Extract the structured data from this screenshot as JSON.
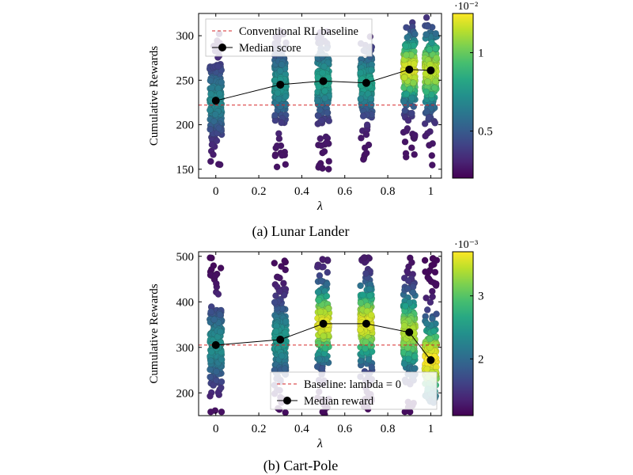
{
  "chart_data": [
    {
      "type": "scatter",
      "subtype": "strip plot with density colouring",
      "caption": "(a) Lunar Lander",
      "xlabel": "λ",
      "ylabel": "Cumulative Rewards",
      "xlim": [
        -0.08,
        1.05
      ],
      "ylim": [
        140,
        325
      ],
      "xticks": [
        0,
        0.2,
        0.4,
        0.6,
        0.8,
        1
      ],
      "xtick_labels": [
        "0",
        "0.2",
        "0.4",
        "0.6",
        "0.8",
        "1"
      ],
      "yticks": [
        150,
        200,
        250,
        300
      ],
      "ytick_labels": [
        "150",
        "200",
        "250",
        "300"
      ],
      "grid": false,
      "legend_position": "top-left",
      "colormap": "viridis",
      "colorbar": {
        "label_exponent": "·10⁻²",
        "range": [
          0.2,
          1.25
        ],
        "ticks": [
          0.5,
          1
        ],
        "tick_labels": [
          "0.5",
          "1"
        ]
      },
      "baseline": {
        "name": "Conventional RL baseline",
        "y": 222,
        "color": "#d62728",
        "style": "dashed"
      },
      "median_series": {
        "name": "Median score",
        "x": [
          0,
          0.3,
          0.5,
          0.7,
          0.9,
          1
        ],
        "y": [
          227,
          245,
          249,
          247,
          262,
          261
        ]
      },
      "strips": [
        {
          "x": 0,
          "ymin": 150,
          "ymax": 305,
          "median": 227,
          "density_peak": 0.7
        },
        {
          "x": 0.3,
          "ymin": 152,
          "ymax": 305,
          "median": 245,
          "density_peak": 0.75
        },
        {
          "x": 0.5,
          "ymin": 150,
          "ymax": 305,
          "median": 249,
          "density_peak": 0.8
        },
        {
          "x": 0.7,
          "ymin": 160,
          "ymax": 305,
          "median": 247,
          "density_peak": 0.8
        },
        {
          "x": 0.9,
          "ymin": 162,
          "ymax": 315,
          "median": 262,
          "density_peak": 1.2
        },
        {
          "x": 1,
          "ymin": 153,
          "ymax": 322,
          "median": 261,
          "density_peak": 1.15
        }
      ]
    },
    {
      "type": "scatter",
      "subtype": "strip plot with density colouring",
      "caption": "(b) Cart-Pole",
      "xlabel": "λ",
      "ylabel": "Cumulative Rewards",
      "xlim": [
        -0.08,
        1.05
      ],
      "ylim": [
        150,
        510
      ],
      "xticks": [
        0,
        0.2,
        0.4,
        0.6,
        0.8,
        1
      ],
      "xtick_labels": [
        "0",
        "0.2",
        "0.4",
        "0.6",
        "0.8",
        "1"
      ],
      "yticks": [
        200,
        300,
        400,
        500
      ],
      "ytick_labels": [
        "200",
        "300",
        "400",
        "500"
      ],
      "grid": false,
      "legend_position": "bottom-right",
      "colormap": "viridis",
      "colorbar": {
        "label_exponent": "·10⁻³",
        "range": [
          1.1,
          3.7
        ],
        "ticks": [
          2,
          3
        ],
        "tick_labels": [
          "2",
          "3"
        ]
      },
      "baseline": {
        "name": "Baseline: lambda = 0",
        "y": 305,
        "color": "#d62728",
        "style": "dashed"
      },
      "median_series": {
        "name": "Median reward",
        "x": [
          0,
          0.3,
          0.5,
          0.7,
          0.9,
          1
        ],
        "y": [
          305,
          317,
          352,
          352,
          333,
          272
        ]
      },
      "strips": [
        {
          "x": 0,
          "ymin": 150,
          "ymax": 500,
          "median": 305,
          "density_peak": 2.4
        },
        {
          "x": 0.3,
          "ymin": 150,
          "ymax": 500,
          "median": 317,
          "density_peak": 2.5
        },
        {
          "x": 0.5,
          "ymin": 150,
          "ymax": 500,
          "median": 352,
          "density_peak": 3.6
        },
        {
          "x": 0.7,
          "ymin": 150,
          "ymax": 500,
          "median": 352,
          "density_peak": 3.6
        },
        {
          "x": 0.9,
          "ymin": 150,
          "ymax": 500,
          "median": 333,
          "density_peak": 3.4
        },
        {
          "x": 1,
          "ymin": 150,
          "ymax": 500,
          "median": 272,
          "density_peak": 3.7
        }
      ]
    }
  ]
}
